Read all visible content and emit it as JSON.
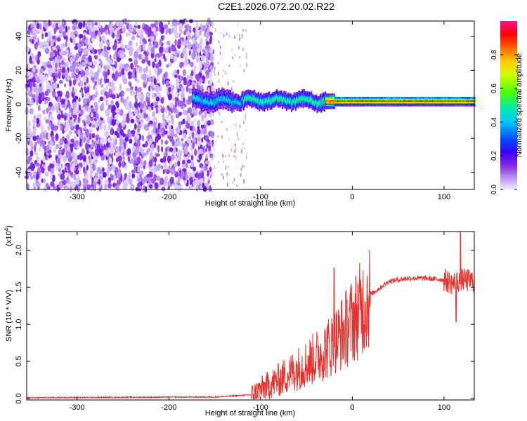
{
  "title": "C2E1.2026.072.20.02.R22",
  "chart_data": [
    {
      "type": "heatmap",
      "xlabel": "Height of straight line (km)",
      "ylabel": "Frequency (Hz)",
      "xlim": [
        -355,
        133
      ],
      "ylim": [
        -50,
        49
      ],
      "xticks": [
        -300,
        -200,
        -100,
        0,
        100
      ],
      "xtick_labels": [
        "-300",
        "-200",
        "-100",
        "0",
        "100"
      ],
      "yticks": [
        -40,
        -20,
        0,
        20,
        40
      ],
      "ytick_labels": [
        "-40",
        "-20",
        "0",
        "20",
        "40"
      ],
      "colorbar": {
        "label": "Normalized spectral amplitude",
        "range": [
          0,
          1
        ],
        "ticks": [
          0,
          0.2,
          0.4,
          0.6,
          0.8
        ],
        "tick_labels": [
          "0.0",
          "0.2",
          "0.4",
          "0.6",
          "0.8"
        ]
      },
      "regions": [
        {
          "name": "noise",
          "x_range": [
            -355,
            -152
          ],
          "freq_range": [
            -50,
            49
          ],
          "amplitude": "~0.1"
        },
        {
          "name": "sparse-noise",
          "x_range": [
            -160,
            -115
          ],
          "freq_range": [
            -50,
            49
          ],
          "amplitude": "~0.05"
        },
        {
          "name": "signal-band",
          "x_range": [
            -175,
            133
          ],
          "freq_center": 2,
          "freq_halfwidth": 4,
          "amplitude": "0.4-0.95"
        }
      ]
    },
    {
      "type": "line",
      "xlabel": "Height of straight line (km)",
      "ylabel": "SNR (10 * V/V)",
      "y_multiplier": "(x10^4)",
      "y_multiplier_base": "(x10",
      "y_multiplier_exp": "4",
      "y_multiplier_close": ")",
      "xlim": [
        -355,
        133
      ],
      "ylim": [
        -0.02,
        2.25
      ],
      "xticks": [
        -300,
        -200,
        -100,
        0,
        100
      ],
      "xtick_labels": [
        "-300",
        "-200",
        "-100",
        "0",
        "100"
      ],
      "yticks": [
        0,
        0.5,
        1.0,
        1.5,
        2.0
      ],
      "ytick_labels": [
        "0.0",
        "0.5",
        "1.0",
        "1.5",
        "2.0"
      ],
      "series": [
        {
          "name": "SNR",
          "color": "#e8322e",
          "trend": {
            "x": [
              -355,
              -150,
              -110,
              -100,
              -80,
              -60,
              -40,
              -20,
              0,
              20,
              40,
              60,
              80,
              100,
              110,
              118,
              133
            ],
            "y": [
              0.01,
              0.02,
              0.05,
              0.12,
              0.25,
              0.4,
              0.55,
              0.75,
              1.05,
              1.4,
              1.58,
              1.62,
              1.62,
              1.6,
              1.55,
              1.6,
              1.58
            ]
          },
          "peaks": [
            {
              "x": -20,
              "y": 1.76
            },
            {
              "x": 118,
              "y": 2.24
            },
            {
              "x": 113,
              "y": 1.03
            }
          ]
        }
      ]
    }
  ]
}
